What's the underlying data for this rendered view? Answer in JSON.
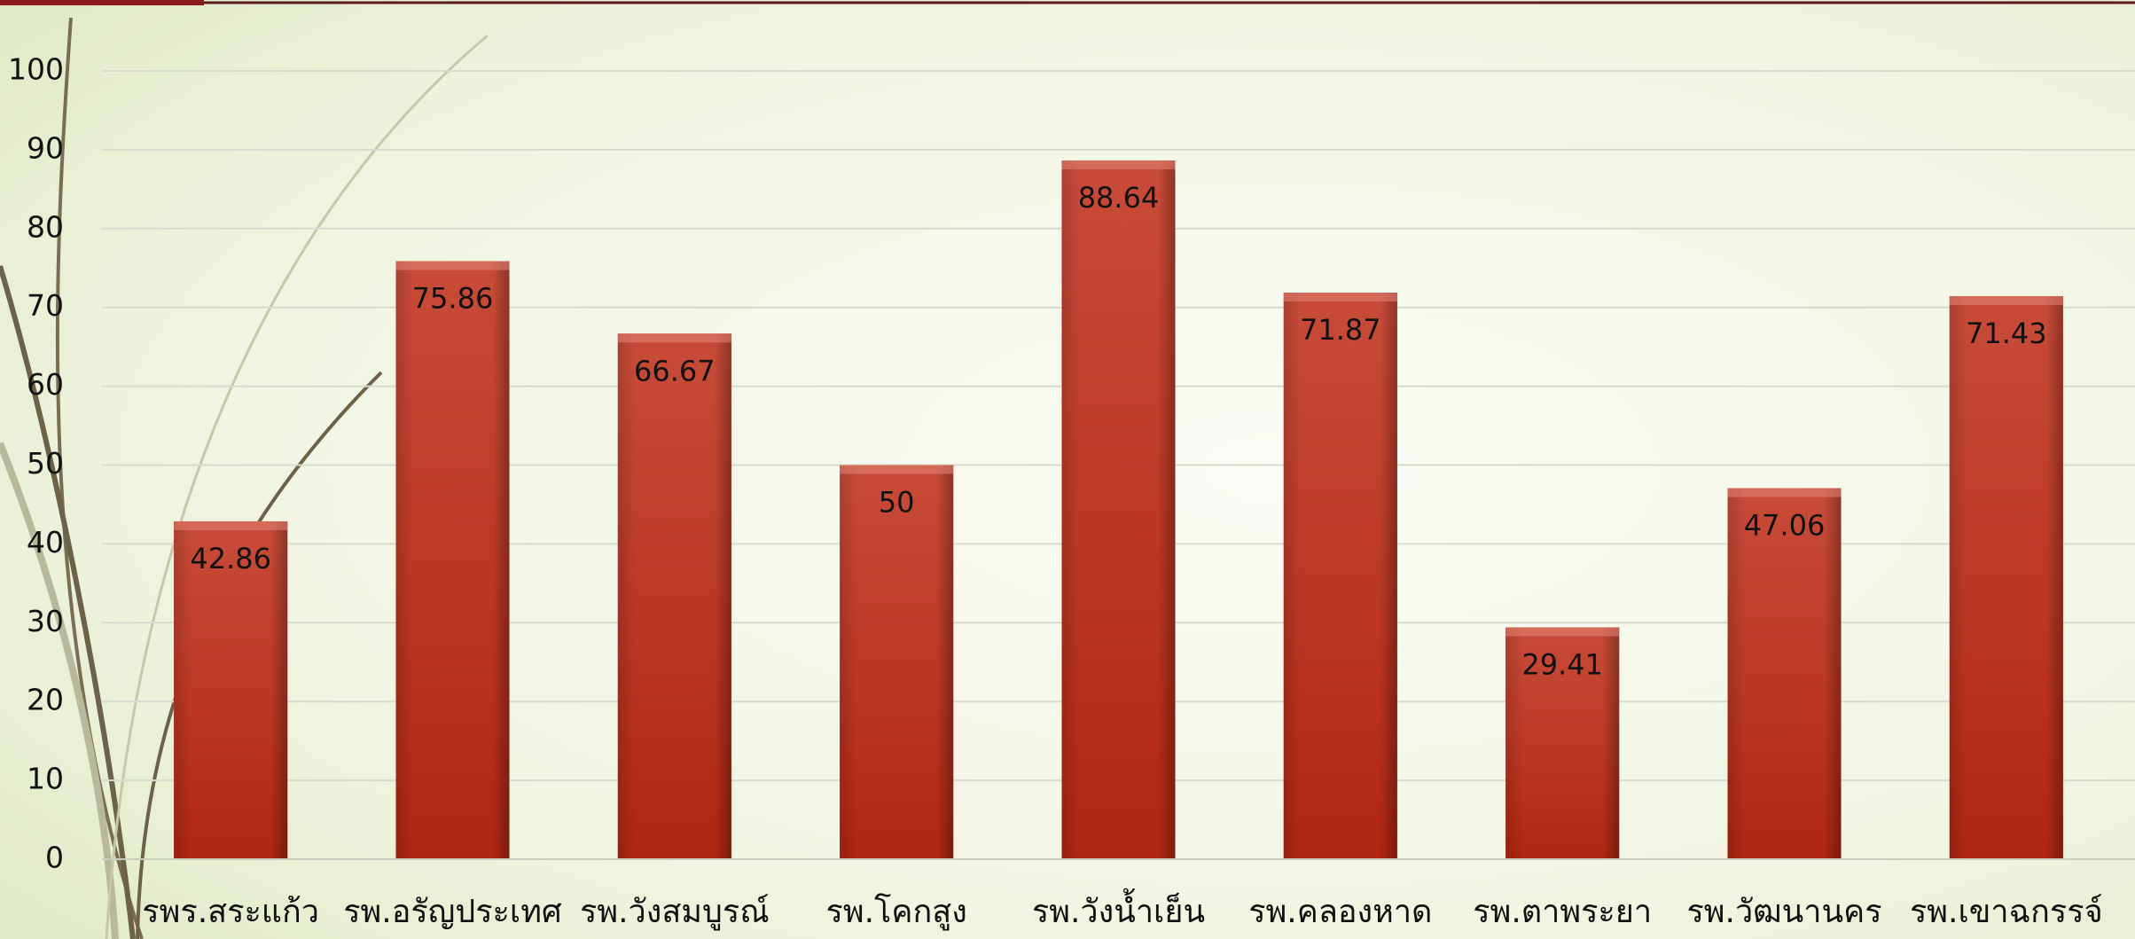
{
  "chart_data": {
    "type": "bar",
    "categories": [
      "รพร.สระแก้ว",
      "รพ.อรัญประเทศ",
      "รพ.วังสมบูรณ์",
      "รพ.โคกสูง",
      "รพ.วังน้ำเย็น",
      "รพ.คลองหาด",
      "รพ.ตาพระยา",
      "รพ.วัฒนานคร",
      "รพ.เขาฉกรรจ์"
    ],
    "values": [
      42.86,
      75.86,
      66.67,
      50,
      88.64,
      71.87,
      29.41,
      47.06,
      71.43
    ],
    "color": "#c0311b",
    "ylim": [
      0,
      100
    ],
    "yticks": [
      0,
      10,
      20,
      30,
      40,
      50,
      60,
      70,
      80,
      90,
      100
    ],
    "grid": true
  }
}
